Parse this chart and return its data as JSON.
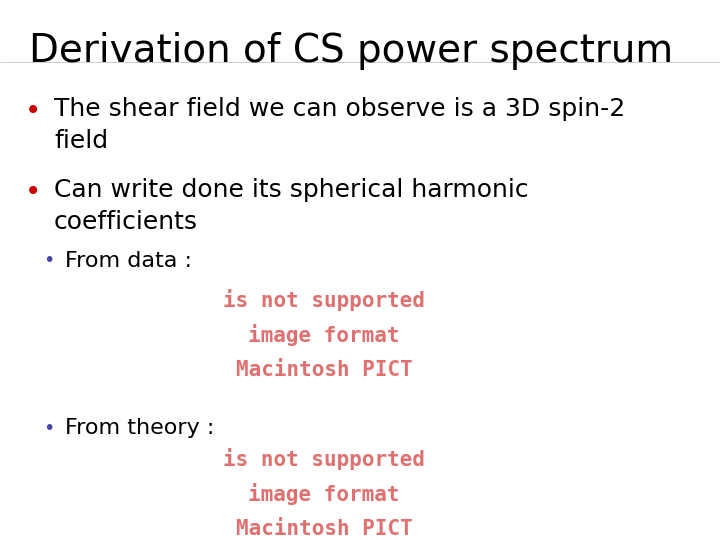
{
  "title": "Derivation of CS power spectrum",
  "title_fontsize": 28,
  "title_color": "#000000",
  "background_color": "#ffffff",
  "bullet_color": "#cc0000",
  "text_color": "#000000",
  "sub_bullet_color": "#4444aa",
  "pict_color": "#e07070",
  "pict_lines": [
    "Macintosh PICT",
    "image format",
    "is not supported"
  ],
  "pict_fontsize": 15,
  "bullet1_text": "The shear field we can observe is a 3D spin-2\nfield",
  "bullet2_text": "Can write done its spherical harmonic\ncoefficients",
  "sub1_text": "From data :",
  "sub2_text": "From theory :",
  "bullet_fontsize": 18,
  "sub_fontsize": 16
}
